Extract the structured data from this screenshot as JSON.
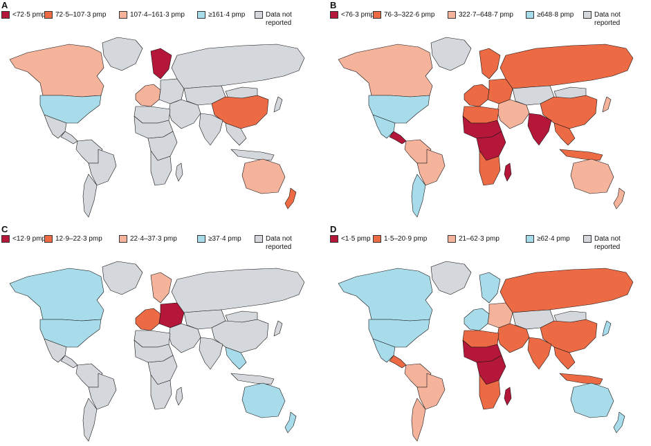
{
  "colors": {
    "dark_red": "#b5173a",
    "orange": "#ec6a44",
    "peach": "#f5b39c",
    "light_blue": "#a8dcea",
    "gray": "#d4d8dd",
    "border": "#111111"
  },
  "panels": [
    {
      "letter": "A",
      "legend": [
        {
          "label": "<72·5 pmp",
          "color": "#b5173a"
        },
        {
          "label": "72·5–107·3 pmp",
          "color": "#ec6a44"
        },
        {
          "label": "107·4–161·3 pmp",
          "color": "#f5b39c"
        },
        {
          "label": "≥161·4 pmp",
          "color": "#a8dcea"
        },
        {
          "label": "Data not\nreported",
          "color": "#d4d8dd"
        }
      ],
      "regions": {
        "north_america": "peach",
        "usa": "light_blue",
        "mexico": "gray",
        "central_america": "gray",
        "greenland": "gray",
        "south_america": "gray",
        "brazil": "gray",
        "southern_cone": "gray",
        "western_europe": "peach",
        "scandinavia": "dark_red",
        "eastern_europe": "gray",
        "russia": "gray",
        "central_asia": "gray",
        "middle_east": "gray",
        "north_africa": "gray",
        "sahel": "gray",
        "central_africa": "gray",
        "southern_africa": "gray",
        "madagascar": "gray",
        "india": "gray",
        "china": "orange",
        "mongolia": "gray",
        "southeast_asia": "gray",
        "japan": "gray",
        "indonesia": "gray",
        "australia": "peach",
        "new_zealand": "orange"
      }
    },
    {
      "letter": "B",
      "legend": [
        {
          "label": "<76·3 pmp",
          "color": "#b5173a"
        },
        {
          "label": "76·3–322·6 pmp",
          "color": "#ec6a44"
        },
        {
          "label": "322·7–648·7 pmp",
          "color": "#f5b39c"
        },
        {
          "label": "≥648·8 pmp",
          "color": "#a8dcea"
        },
        {
          "label": "Data not\nreported",
          "color": "#d4d8dd"
        }
      ],
      "regions": {
        "north_america": "peach",
        "usa": "light_blue",
        "mexico": "light_blue",
        "central_america": "dark_red",
        "greenland": "gray",
        "south_america": "peach",
        "brazil": "peach",
        "southern_cone": "light_blue",
        "western_europe": "orange",
        "scandinavia": "orange",
        "eastern_europe": "orange",
        "russia": "orange",
        "central_asia": "gray",
        "middle_east": "peach",
        "north_africa": "orange",
        "sahel": "dark_red",
        "central_africa": "dark_red",
        "southern_africa": "orange",
        "madagascar": "dark_red",
        "india": "dark_red",
        "china": "orange",
        "mongolia": "gray",
        "southeast_asia": "orange",
        "japan": "peach",
        "indonesia": "orange",
        "australia": "peach",
        "new_zealand": "peach"
      }
    },
    {
      "letter": "C",
      "legend": [
        {
          "label": "<12·9 pmp",
          "color": "#b5173a"
        },
        {
          "label": "12·9–22·3 pmp",
          "color": "#ec6a44"
        },
        {
          "label": "22·4–37·3 pmp",
          "color": "#f5b39c"
        },
        {
          "label": "≥37·4 pmp",
          "color": "#a8dcea"
        },
        {
          "label": "Data not\nreported",
          "color": "#d4d8dd"
        }
      ],
      "regions": {
        "north_america": "light_blue",
        "usa": "light_blue",
        "mexico": "gray",
        "central_america": "gray",
        "greenland": "gray",
        "south_america": "gray",
        "brazil": "gray",
        "southern_cone": "gray",
        "western_europe": "orange",
        "scandinavia": "peach",
        "eastern_europe": "dark_red",
        "russia": "gray",
        "central_asia": "gray",
        "middle_east": "gray",
        "north_africa": "gray",
        "sahel": "gray",
        "central_africa": "gray",
        "southern_africa": "gray",
        "madagascar": "gray",
        "india": "gray",
        "china": "gray",
        "mongolia": "gray",
        "southeast_asia": "light_blue",
        "japan": "gray",
        "indonesia": "gray",
        "australia": "light_blue",
        "new_zealand": "light_blue"
      }
    },
    {
      "letter": "D",
      "legend": [
        {
          "label": "<1·5 pmp",
          "color": "#b5173a"
        },
        {
          "label": "1·5–20·9 pmp",
          "color": "#ec6a44"
        },
        {
          "label": "21–62·3 pmp",
          "color": "#f5b39c"
        },
        {
          "label": "≥62·4 pmp",
          "color": "#a8dcea"
        },
        {
          "label": "Data not\nreported",
          "color": "#d4d8dd"
        }
      ],
      "regions": {
        "north_america": "light_blue",
        "usa": "light_blue",
        "mexico": "light_blue",
        "central_america": "orange",
        "greenland": "gray",
        "south_america": "peach",
        "brazil": "peach",
        "southern_cone": "peach",
        "western_europe": "light_blue",
        "scandinavia": "light_blue",
        "eastern_europe": "peach",
        "russia": "orange",
        "central_asia": "gray",
        "middle_east": "orange",
        "north_africa": "orange",
        "sahel": "dark_red",
        "central_africa": "dark_red",
        "southern_africa": "orange",
        "madagascar": "dark_red",
        "india": "orange",
        "china": "orange",
        "mongolia": "gray",
        "southeast_asia": "orange",
        "japan": "light_blue",
        "indonesia": "orange",
        "australia": "light_blue",
        "new_zealand": "light_blue"
      }
    }
  ]
}
